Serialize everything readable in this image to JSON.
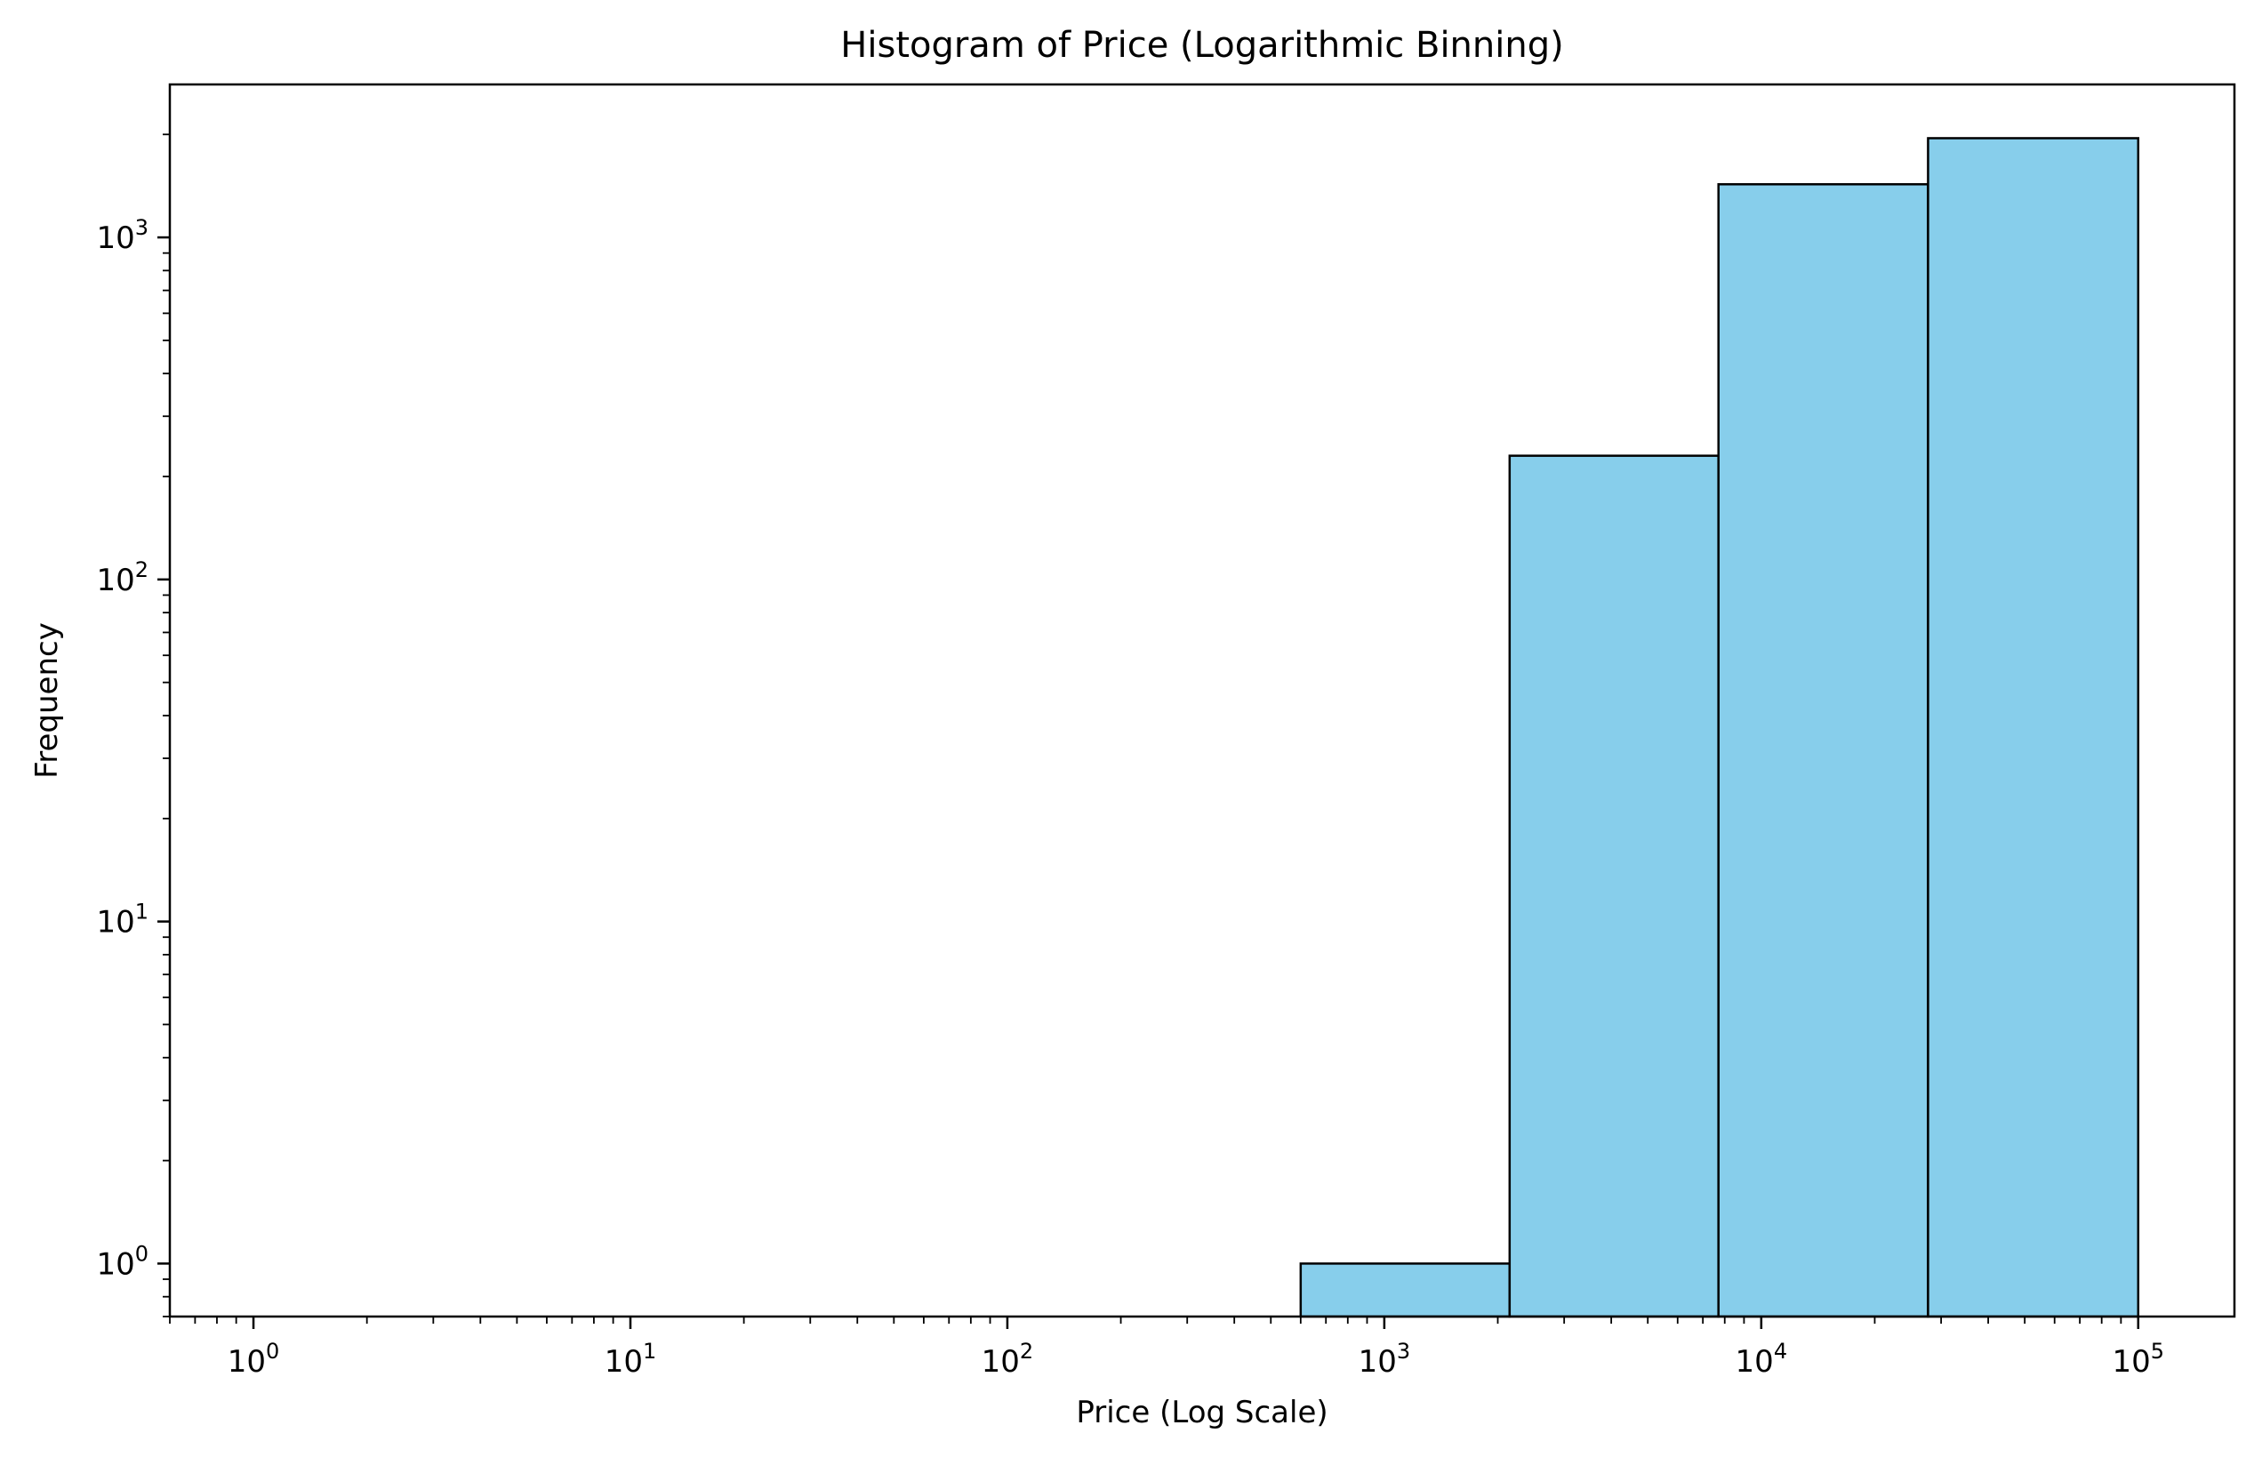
{
  "chart_data": {
    "type": "bar",
    "title": "Histogram of Price (Logarithmic Binning)",
    "xlabel": "Price (Log Scale)",
    "ylabel": "Frequency",
    "x_scale": "log",
    "y_scale": "log",
    "xlim": [
      0.6,
      180000
    ],
    "ylim": [
      0.7,
      2800
    ],
    "x_ticks": [
      {
        "base": "10",
        "exp": "0"
      },
      {
        "base": "10",
        "exp": "1"
      },
      {
        "base": "10",
        "exp": "2"
      },
      {
        "base": "10",
        "exp": "3"
      },
      {
        "base": "10",
        "exp": "4"
      },
      {
        "base": "10",
        "exp": "5"
      }
    ],
    "y_ticks": [
      {
        "base": "10",
        "exp": "0"
      },
      {
        "base": "10",
        "exp": "1"
      },
      {
        "base": "10",
        "exp": "2"
      },
      {
        "base": "10",
        "exp": "3"
      }
    ],
    "bins": [
      {
        "x0": 600,
        "x1": 2150,
        "count": 1
      },
      {
        "x0": 2150,
        "x1": 7700,
        "count": 230
      },
      {
        "x0": 7700,
        "x1": 27700,
        "count": 1430
      },
      {
        "x0": 27700,
        "x1": 100000,
        "count": 1950
      }
    ],
    "bar_color": "#87ceeb",
    "edge_color": "#000000",
    "grid": false,
    "legend": "none"
  }
}
